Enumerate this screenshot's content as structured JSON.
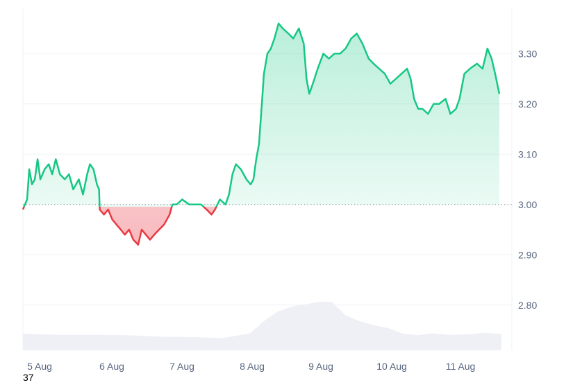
{
  "chart_data": {
    "type": "line",
    "title": "",
    "xlabel": "",
    "ylabel": "",
    "baseline": 3.0,
    "ylim": [
      2.71,
      3.39
    ],
    "y_ticks": [
      "3.30",
      "3.20",
      "3.10",
      "3.00",
      "2.90",
      "2.80"
    ],
    "x_ticks": [
      "5 Aug",
      "6 Aug",
      "7 Aug",
      "8 Aug",
      "9 Aug",
      "10 Aug",
      "11 Aug"
    ],
    "x_range_days": [
      0.0,
      7.0
    ],
    "grid": true,
    "colors": {
      "above": "#16c784",
      "below": "#ea3943",
      "volume": "#eef0f6",
      "grid": "#eff2f5"
    },
    "series": [
      {
        "values": [
          [
            0.0,
            2.99
          ],
          [
            0.06,
            3.01
          ],
          [
            0.09,
            3.07
          ],
          [
            0.13,
            3.04
          ],
          [
            0.17,
            3.05
          ],
          [
            0.21,
            3.09
          ],
          [
            0.25,
            3.05
          ],
          [
            0.31,
            3.07
          ],
          [
            0.37,
            3.08
          ],
          [
            0.42,
            3.06
          ],
          [
            0.47,
            3.09
          ],
          [
            0.53,
            3.06
          ],
          [
            0.6,
            3.05
          ],
          [
            0.66,
            3.06
          ],
          [
            0.72,
            3.03
          ],
          [
            0.8,
            3.05
          ],
          [
            0.86,
            3.02
          ],
          [
            0.92,
            3.06
          ],
          [
            0.96,
            3.08
          ],
          [
            1.01,
            3.07
          ],
          [
            1.06,
            3.04
          ],
          [
            1.09,
            3.03
          ],
          [
            1.1,
            2.99
          ],
          [
            1.16,
            2.98
          ],
          [
            1.22,
            2.99
          ],
          [
            1.28,
            2.97
          ],
          [
            1.34,
            2.96
          ],
          [
            1.4,
            2.95
          ],
          [
            1.46,
            2.94
          ],
          [
            1.52,
            2.95
          ],
          [
            1.58,
            2.93
          ],
          [
            1.65,
            2.92
          ],
          [
            1.7,
            2.95
          ],
          [
            1.76,
            2.94
          ],
          [
            1.82,
            2.93
          ],
          [
            1.88,
            2.94
          ],
          [
            1.95,
            2.95
          ],
          [
            2.02,
            2.96
          ],
          [
            2.1,
            2.98
          ],
          [
            2.14,
            3.0
          ],
          [
            2.2,
            3.0
          ],
          [
            2.28,
            3.01
          ],
          [
            2.38,
            3.0
          ],
          [
            2.45,
            3.0
          ],
          [
            2.55,
            3.0
          ],
          [
            2.63,
            2.99
          ],
          [
            2.7,
            2.98
          ],
          [
            2.75,
            2.99
          ],
          [
            2.82,
            3.01
          ],
          [
            2.9,
            3.0
          ],
          [
            2.95,
            3.02
          ],
          [
            3.0,
            3.06
          ],
          [
            3.05,
            3.08
          ],
          [
            3.12,
            3.07
          ],
          [
            3.2,
            3.05
          ],
          [
            3.26,
            3.04
          ],
          [
            3.3,
            3.05
          ],
          [
            3.34,
            3.09
          ],
          [
            3.38,
            3.12
          ],
          [
            3.42,
            3.2
          ],
          [
            3.45,
            3.26
          ],
          [
            3.5,
            3.3
          ],
          [
            3.55,
            3.31
          ],
          [
            3.6,
            3.33
          ],
          [
            3.66,
            3.36
          ],
          [
            3.72,
            3.35
          ],
          [
            3.8,
            3.34
          ],
          [
            3.87,
            3.33
          ],
          [
            3.95,
            3.35
          ],
          [
            4.02,
            3.32
          ],
          [
            4.06,
            3.25
          ],
          [
            4.1,
            3.22
          ],
          [
            4.15,
            3.24
          ],
          [
            4.22,
            3.27
          ],
          [
            4.3,
            3.3
          ],
          [
            4.38,
            3.29
          ],
          [
            4.46,
            3.3
          ],
          [
            4.54,
            3.3
          ],
          [
            4.62,
            3.31
          ],
          [
            4.7,
            3.33
          ],
          [
            4.78,
            3.34
          ],
          [
            4.86,
            3.32
          ],
          [
            4.95,
            3.29
          ],
          [
            5.02,
            3.28
          ],
          [
            5.1,
            3.27
          ],
          [
            5.18,
            3.26
          ],
          [
            5.26,
            3.24
          ],
          [
            5.34,
            3.25
          ],
          [
            5.42,
            3.26
          ],
          [
            5.5,
            3.27
          ],
          [
            5.55,
            3.25
          ],
          [
            5.6,
            3.21
          ],
          [
            5.66,
            3.19
          ],
          [
            5.72,
            3.19
          ],
          [
            5.8,
            3.18
          ],
          [
            5.88,
            3.2
          ],
          [
            5.96,
            3.2
          ],
          [
            6.05,
            3.21
          ],
          [
            6.12,
            3.18
          ],
          [
            6.2,
            3.19
          ],
          [
            6.25,
            3.21
          ],
          [
            6.32,
            3.26
          ],
          [
            6.4,
            3.27
          ],
          [
            6.5,
            3.28
          ],
          [
            6.58,
            3.27
          ],
          [
            6.65,
            3.31
          ],
          [
            6.71,
            3.29
          ],
          [
            6.76,
            3.26
          ],
          [
            6.82,
            3.22
          ]
        ]
      }
    ],
    "volume": [
      [
        0.0,
        0.34
      ],
      [
        0.5,
        0.32
      ],
      [
        1.0,
        0.32
      ],
      [
        1.5,
        0.31
      ],
      [
        2.0,
        0.28
      ],
      [
        2.5,
        0.27
      ],
      [
        2.85,
        0.25
      ],
      [
        3.05,
        0.3
      ],
      [
        3.25,
        0.35
      ],
      [
        3.45,
        0.6
      ],
      [
        3.65,
        0.8
      ],
      [
        3.85,
        0.9
      ],
      [
        4.05,
        0.95
      ],
      [
        4.25,
        1.0
      ],
      [
        4.42,
        1.0
      ],
      [
        4.62,
        0.72
      ],
      [
        4.82,
        0.6
      ],
      [
        5.02,
        0.52
      ],
      [
        5.25,
        0.45
      ],
      [
        5.45,
        0.34
      ],
      [
        5.65,
        0.31
      ],
      [
        5.85,
        0.35
      ],
      [
        6.1,
        0.32
      ],
      [
        6.4,
        0.33
      ],
      [
        6.6,
        0.36
      ],
      [
        6.85,
        0.34
      ]
    ],
    "corner_label": "37"
  }
}
